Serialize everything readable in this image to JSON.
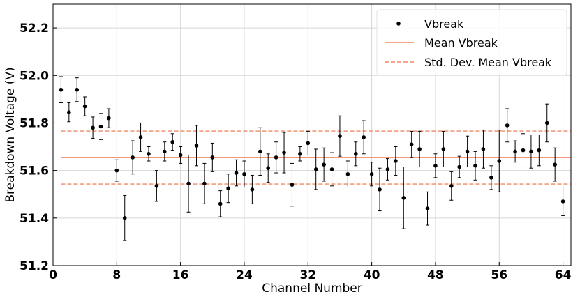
{
  "chart_data": {
    "type": "scatter",
    "xlabel": "Channel Number",
    "ylabel": "Breakdown Voltage (V)",
    "xlim": [
      0,
      65
    ],
    "ylim": [
      51.2,
      52.3
    ],
    "xticks": [
      0,
      8,
      16,
      24,
      32,
      40,
      48,
      56,
      64
    ],
    "yticks": [
      51.2,
      51.4,
      51.6,
      51.8,
      52.0,
      52.2
    ],
    "grid": true,
    "legend_position": "top-right",
    "colors": {
      "points": "#000000",
      "mean": "#f08a64",
      "std": "#f08a64"
    },
    "mean": 51.655,
    "std_band": [
      51.543,
      51.766
    ],
    "legend": [
      {
        "label": "Vbreak",
        "style": "point"
      },
      {
        "label": "Mean Vbreak",
        "style": "solid"
      },
      {
        "label": "Std. Dev. Mean Vbreak",
        "style": "dashed"
      }
    ],
    "series": [
      {
        "name": "Vbreak",
        "x": [
          1,
          2,
          3,
          4,
          5,
          6,
          7,
          8,
          9,
          10,
          11,
          12,
          13,
          14,
          15,
          16,
          17,
          18,
          19,
          20,
          21,
          22,
          23,
          24,
          25,
          26,
          27,
          28,
          29,
          30,
          31,
          32,
          33,
          34,
          35,
          36,
          37,
          38,
          39,
          40,
          41,
          42,
          43,
          44,
          45,
          46,
          47,
          48,
          49,
          50,
          51,
          52,
          53,
          54,
          55,
          56,
          57,
          58,
          59,
          60,
          61,
          62,
          63,
          64
        ],
        "y": [
          51.94,
          51.845,
          51.94,
          51.87,
          51.78,
          51.785,
          51.82,
          51.6,
          51.4,
          51.655,
          51.74,
          51.67,
          51.535,
          51.68,
          51.72,
          51.665,
          51.545,
          51.705,
          51.545,
          51.655,
          51.46,
          51.525,
          51.59,
          51.585,
          51.52,
          51.68,
          51.61,
          51.655,
          51.675,
          51.54,
          51.67,
          51.715,
          51.605,
          51.625,
          51.605,
          51.745,
          51.585,
          51.67,
          51.74,
          51.585,
          51.52,
          51.605,
          51.64,
          51.485,
          51.71,
          51.69,
          51.44,
          51.62,
          51.69,
          51.535,
          51.615,
          51.68,
          51.62,
          51.69,
          51.57,
          51.64,
          51.79,
          51.68,
          51.685,
          51.68,
          51.685,
          51.8,
          51.625,
          51.47
        ],
        "err": [
          0.055,
          0.04,
          0.05,
          0.04,
          0.045,
          0.055,
          0.04,
          0.045,
          0.095,
          0.07,
          0.06,
          0.03,
          0.065,
          0.04,
          0.035,
          0.035,
          0.12,
          0.085,
          0.085,
          0.06,
          0.055,
          0.06,
          0.055,
          0.055,
          0.06,
          0.1,
          0.06,
          0.065,
          0.085,
          0.09,
          0.03,
          0.05,
          0.085,
          0.07,
          0.07,
          0.085,
          0.055,
          0.05,
          0.07,
          0.05,
          0.09,
          0.045,
          0.06,
          0.13,
          0.055,
          0.075,
          0.07,
          0.05,
          0.075,
          0.06,
          0.045,
          0.065,
          0.06,
          0.08,
          0.05,
          0.13,
          0.07,
          0.045,
          0.07,
          0.07,
          0.065,
          0.08,
          0.07,
          0.06
        ]
      }
    ]
  }
}
